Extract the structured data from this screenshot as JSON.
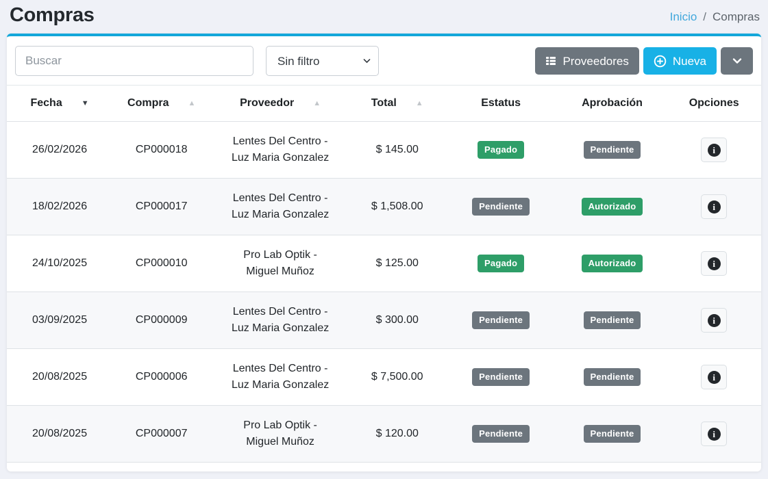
{
  "page": {
    "title": "Compras",
    "breadcrumb": {
      "home": "Inicio",
      "separator": "/",
      "current": "Compras"
    }
  },
  "toolbar": {
    "search_placeholder": "Buscar",
    "filter_selected": "Sin filtro",
    "proveedores_label": "Proveedores",
    "nueva_label": "Nueva",
    "icons": {
      "proveedores": "list-icon",
      "nueva": "plus-circle-icon",
      "more": "chevron-down-icon",
      "filter": "chevron-down-icon"
    }
  },
  "colors": {
    "accent": "#18b1e6",
    "card_top": "#14a7da",
    "green": "#2e9e68",
    "gray": "#6c757d",
    "link": "#41a8dc"
  },
  "table": {
    "columns": [
      {
        "label": "Fecha",
        "sort": {
          "dir": "desc",
          "active": true
        }
      },
      {
        "label": "Compra",
        "sort": {
          "dir": "asc",
          "active": false
        }
      },
      {
        "label": "Proveedor",
        "sort": {
          "dir": "asc",
          "active": false
        }
      },
      {
        "label": "Total",
        "sort": {
          "dir": "asc",
          "active": false
        }
      },
      {
        "label": "Estatus",
        "sort": null
      },
      {
        "label": "Aprobación",
        "sort": null
      },
      {
        "label": "Opciones",
        "sort": null
      }
    ],
    "options_icon": "info-icon",
    "rows": [
      {
        "fecha": "26/02/2026",
        "compra": "CP000018",
        "proveedor": [
          "Lentes Del Centro -",
          "Luz Maria Gonzalez"
        ],
        "total": "$ 145.00",
        "estatus": {
          "label": "Pagado",
          "type": "success"
        },
        "aprobacion": {
          "label": "Pendiente",
          "type": "secondary"
        }
      },
      {
        "fecha": "18/02/2026",
        "compra": "CP000017",
        "proveedor": [
          "Lentes Del Centro -",
          "Luz Maria Gonzalez"
        ],
        "total": "$ 1,508.00",
        "estatus": {
          "label": "Pendiente",
          "type": "secondary"
        },
        "aprobacion": {
          "label": "Autorizado",
          "type": "success"
        }
      },
      {
        "fecha": "24/10/2025",
        "compra": "CP000010",
        "proveedor": [
          "Pro Lab Optik -",
          "Miguel Muñoz"
        ],
        "total": "$ 125.00",
        "estatus": {
          "label": "Pagado",
          "type": "success"
        },
        "aprobacion": {
          "label": "Autorizado",
          "type": "success"
        }
      },
      {
        "fecha": "03/09/2025",
        "compra": "CP000009",
        "proveedor": [
          "Lentes Del Centro -",
          "Luz Maria Gonzalez"
        ],
        "total": "$ 300.00",
        "estatus": {
          "label": "Pendiente",
          "type": "secondary"
        },
        "aprobacion": {
          "label": "Pendiente",
          "type": "secondary"
        }
      },
      {
        "fecha": "20/08/2025",
        "compra": "CP000006",
        "proveedor": [
          "Lentes Del Centro -",
          "Luz Maria Gonzalez"
        ],
        "total": "$ 7,500.00",
        "estatus": {
          "label": "Pendiente",
          "type": "secondary"
        },
        "aprobacion": {
          "label": "Pendiente",
          "type": "secondary"
        }
      },
      {
        "fecha": "20/08/2025",
        "compra": "CP000007",
        "proveedor": [
          "Pro Lab Optik -",
          "Miguel Muñoz"
        ],
        "total": "$ 120.00",
        "estatus": {
          "label": "Pendiente",
          "type": "secondary"
        },
        "aprobacion": {
          "label": "Pendiente",
          "type": "secondary"
        }
      }
    ]
  }
}
